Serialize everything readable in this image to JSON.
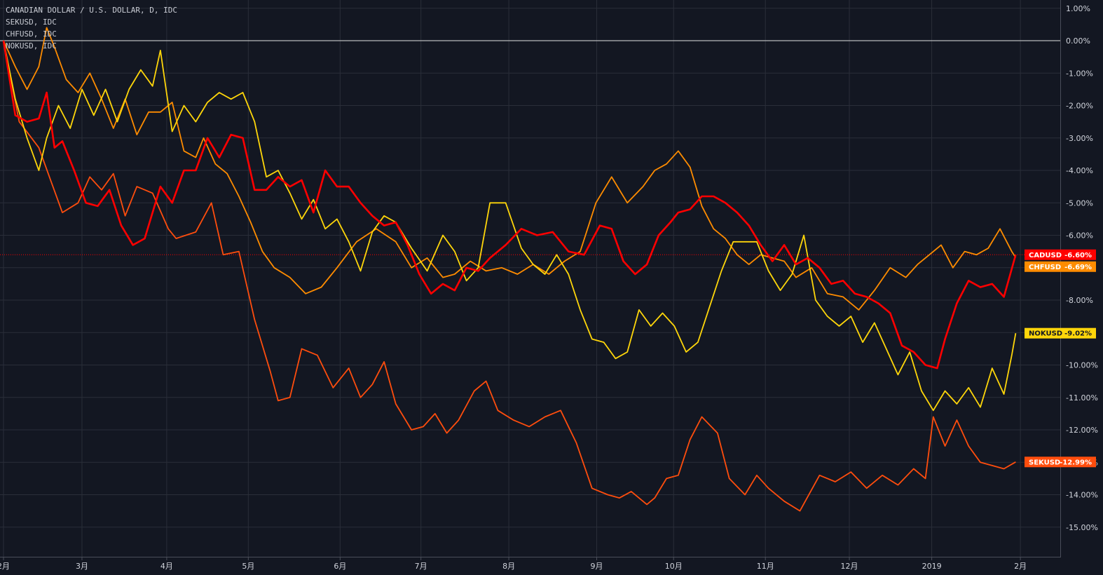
{
  "legend": {
    "line1": "CANADIAN DOLLAR / U.S. DOLLAR, D, IDC",
    "line2": "SEKUSD, IDC",
    "line3": "CHFUSD, IDC",
    "line4": "NOKUSD, IDC"
  },
  "chart_data": {
    "type": "line",
    "title": "CANADIAN DOLLAR / U.S. DOLLAR, D, IDC",
    "ylabel": "",
    "xlabel": "",
    "ylim": [
      -15.6,
      1.2
    ],
    "xlim": [
      0,
      1.295
    ],
    "y_ticks": [
      {
        "value": 1,
        "label": "1.00%"
      },
      {
        "value": 0,
        "label": "0.00%"
      },
      {
        "value": -1,
        "label": "-1.00%"
      },
      {
        "value": -2,
        "label": "-2.00%"
      },
      {
        "value": -3,
        "label": "-3.00%"
      },
      {
        "value": -4,
        "label": "-4.00%"
      },
      {
        "value": -5,
        "label": "-5.00%"
      },
      {
        "value": -6,
        "label": "-6.00%"
      },
      {
        "value": -7,
        "label": "-7.00%"
      },
      {
        "value": -8,
        "label": "-8.00%"
      },
      {
        "value": -9,
        "label": "-9.00%"
      },
      {
        "value": -10,
        "label": "-10.00%"
      },
      {
        "value": -11,
        "label": "-11.00%"
      },
      {
        "value": -12,
        "label": "-12.00%"
      },
      {
        "value": -13,
        "label": "-13.00%"
      },
      {
        "value": -14,
        "label": "-14.00%"
      },
      {
        "value": -15,
        "label": "-15.00%"
      }
    ],
    "x_ticks": [
      {
        "value": 0,
        "label": "2月"
      },
      {
        "value": 0.1,
        "label": "3月"
      },
      {
        "value": 0.208,
        "label": "4月"
      },
      {
        "value": 0.312,
        "label": "5月"
      },
      {
        "value": 0.429,
        "label": "6月"
      },
      {
        "value": 0.532,
        "label": "7月"
      },
      {
        "value": 0.644,
        "label": "8月"
      },
      {
        "value": 0.756,
        "label": "9月"
      },
      {
        "value": 0.854,
        "label": "10月"
      },
      {
        "value": 0.971,
        "label": "11月"
      },
      {
        "value": 1.078,
        "label": "12月"
      },
      {
        "value": 1.183,
        "label": "2019"
      },
      {
        "value": 1.296,
        "label": "2月"
      }
    ],
    "reference_line": {
      "value": -6.6,
      "color": "#ff0000",
      "style": "dotted"
    },
    "zero_line": {
      "value": 0,
      "color": "#ffffff"
    },
    "series": [
      {
        "name": "SEKUSD",
        "tag": "SEKUSD",
        "last_label": "-12.99%",
        "color": "#ff4d0d",
        "x": [
          0,
          0.02,
          0.045,
          0.06,
          0.075,
          0.095,
          0.11,
          0.125,
          0.14,
          0.155,
          0.17,
          0.19,
          0.21,
          0.22,
          0.245,
          0.265,
          0.28,
          0.3,
          0.32,
          0.34,
          0.35,
          0.365,
          0.38,
          0.4,
          0.42,
          0.44,
          0.455,
          0.47,
          0.485,
          0.5,
          0.52,
          0.535,
          0.55,
          0.565,
          0.58,
          0.6,
          0.615,
          0.63,
          0.65,
          0.67,
          0.69,
          0.71,
          0.73,
          0.75,
          0.77,
          0.785,
          0.8,
          0.82,
          0.83,
          0.845,
          0.86,
          0.875,
          0.89,
          0.91,
          0.925,
          0.945,
          0.96,
          0.975,
          0.995,
          1.015,
          1.04,
          1.06,
          1.08,
          1.1,
          1.12,
          1.14,
          1.16,
          1.175,
          1.185,
          1.2,
          1.215,
          1.23,
          1.245,
          1.26,
          1.275,
          1.29
        ],
        "y": [
          0,
          -2.5,
          -3.3,
          -4.3,
          -5.3,
          -5.0,
          -4.2,
          -4.6,
          -4.1,
          -5.4,
          -4.5,
          -4.7,
          -5.8,
          -6.1,
          -5.9,
          -5.0,
          -6.6,
          -6.5,
          -8.6,
          -10.2,
          -11.1,
          -11.0,
          -9.5,
          -9.7,
          -10.7,
          -10.1,
          -11.0,
          -10.6,
          -9.9,
          -11.2,
          -12.0,
          -11.9,
          -11.5,
          -12.1,
          -11.7,
          -10.8,
          -10.5,
          -11.4,
          -11.7,
          -11.9,
          -11.6,
          -11.4,
          -12.4,
          -13.8,
          -14.0,
          -14.1,
          -13.9,
          -14.3,
          -14.1,
          -13.5,
          -13.4,
          -12.3,
          -11.6,
          -12.1,
          -13.5,
          -14.0,
          -13.4,
          -13.8,
          -14.2,
          -14.5,
          -13.4,
          -13.6,
          -13.3,
          -13.8,
          -13.4,
          -13.7,
          -13.2,
          -13.5,
          -11.6,
          -12.5,
          -11.7,
          -12.5,
          -13.0,
          -13.1,
          -13.2,
          -12.99
        ]
      },
      {
        "name": "CHFUSD",
        "tag": "CHFUSD",
        "last_label": "-6.69%",
        "color": "#ff8c00",
        "x": [
          0,
          0.015,
          0.03,
          0.045,
          0.055,
          0.065,
          0.08,
          0.095,
          0.11,
          0.125,
          0.14,
          0.155,
          0.17,
          0.185,
          0.2,
          0.215,
          0.23,
          0.245,
          0.255,
          0.27,
          0.285,
          0.3,
          0.315,
          0.33,
          0.345,
          0.365,
          0.385,
          0.405,
          0.425,
          0.45,
          0.475,
          0.5,
          0.52,
          0.54,
          0.56,
          0.575,
          0.595,
          0.615,
          0.635,
          0.655,
          0.675,
          0.695,
          0.715,
          0.735,
          0.755,
          0.775,
          0.795,
          0.815,
          0.83,
          0.845,
          0.86,
          0.875,
          0.89,
          0.905,
          0.92,
          0.935,
          0.95,
          0.965,
          0.98,
          0.995,
          1.01,
          1.03,
          1.05,
          1.07,
          1.09,
          1.11,
          1.13,
          1.15,
          1.165,
          1.18,
          1.195,
          1.21,
          1.225,
          1.24,
          1.255,
          1.27,
          1.285,
          1.29
        ],
        "y": [
          0,
          -0.8,
          -1.5,
          -0.8,
          0.4,
          -0.2,
          -1.2,
          -1.6,
          -1.0,
          -1.8,
          -2.7,
          -1.8,
          -2.9,
          -2.2,
          -2.2,
          -1.9,
          -3.4,
          -3.6,
          -3.0,
          -3.8,
          -4.1,
          -4.8,
          -5.6,
          -6.5,
          -7.0,
          -7.3,
          -7.8,
          -7.6,
          -7.0,
          -6.2,
          -5.8,
          -6.2,
          -7.0,
          -6.7,
          -7.3,
          -7.2,
          -6.8,
          -7.1,
          -7.0,
          -7.2,
          -6.9,
          -7.2,
          -6.8,
          -6.5,
          -5.0,
          -4.2,
          -5.0,
          -4.5,
          -4.0,
          -3.8,
          -3.4,
          -3.9,
          -5.1,
          -5.8,
          -6.1,
          -6.6,
          -6.9,
          -6.6,
          -6.7,
          -6.8,
          -7.3,
          -7.0,
          -7.8,
          -7.9,
          -8.3,
          -7.7,
          -7.0,
          -7.3,
          -6.9,
          -6.6,
          -6.3,
          -7.0,
          -6.5,
          -6.6,
          -6.4,
          -5.8,
          -6.5,
          -6.69
        ]
      },
      {
        "name": "NOKUSD",
        "tag": "NOKUSD",
        "last_label": "-9.02%",
        "color": "#ffd60a",
        "x": [
          0,
          0.015,
          0.03,
          0.045,
          0.055,
          0.07,
          0.085,
          0.1,
          0.115,
          0.13,
          0.145,
          0.16,
          0.175,
          0.19,
          0.2,
          0.215,
          0.23,
          0.245,
          0.26,
          0.275,
          0.29,
          0.305,
          0.32,
          0.335,
          0.35,
          0.365,
          0.38,
          0.395,
          0.41,
          0.425,
          0.44,
          0.455,
          0.47,
          0.485,
          0.5,
          0.52,
          0.54,
          0.56,
          0.575,
          0.59,
          0.605,
          0.62,
          0.64,
          0.66,
          0.675,
          0.69,
          0.705,
          0.72,
          0.735,
          0.75,
          0.765,
          0.78,
          0.795,
          0.81,
          0.825,
          0.84,
          0.855,
          0.87,
          0.885,
          0.9,
          0.915,
          0.93,
          0.945,
          0.96,
          0.975,
          0.99,
          1.005,
          1.02,
          1.035,
          1.05,
          1.065,
          1.08,
          1.095,
          1.11,
          1.125,
          1.14,
          1.155,
          1.17,
          1.185,
          1.2,
          1.215,
          1.23,
          1.245,
          1.26,
          1.275,
          1.285,
          1.29
        ],
        "y": [
          0,
          -1.8,
          -3.0,
          -4.0,
          -3.0,
          -2.0,
          -2.7,
          -1.5,
          -2.3,
          -1.5,
          -2.5,
          -1.5,
          -0.9,
          -1.4,
          -0.3,
          -2.8,
          -2.0,
          -2.5,
          -1.9,
          -1.6,
          -1.8,
          -1.6,
          -2.5,
          -4.2,
          -4.0,
          -4.7,
          -5.5,
          -4.9,
          -5.8,
          -5.5,
          -6.2,
          -7.1,
          -5.9,
          -5.4,
          -5.6,
          -6.4,
          -7.1,
          -6.0,
          -6.5,
          -7.4,
          -7.0,
          -5.0,
          -5.0,
          -6.4,
          -6.9,
          -7.2,
          -6.6,
          -7.2,
          -8.3,
          -9.2,
          -9.3,
          -9.8,
          -9.6,
          -8.3,
          -8.8,
          -8.4,
          -8.8,
          -9.6,
          -9.3,
          -8.2,
          -7.1,
          -6.2,
          -6.2,
          -6.2,
          -7.1,
          -7.7,
          -7.2,
          -6.0,
          -8.0,
          -8.5,
          -8.8,
          -8.5,
          -9.3,
          -8.7,
          -9.5,
          -10.3,
          -9.6,
          -10.8,
          -11.4,
          -10.8,
          -11.2,
          -10.7,
          -11.3,
          -10.1,
          -10.9,
          -9.7,
          -9.02
        ]
      },
      {
        "name": "CADUSD",
        "tag": "CADUSD",
        "last_label": "-6.60%",
        "color": "#ff0000",
        "x": [
          0,
          0.015,
          0.03,
          0.045,
          0.055,
          0.065,
          0.075,
          0.09,
          0.105,
          0.12,
          0.135,
          0.15,
          0.165,
          0.18,
          0.2,
          0.215,
          0.23,
          0.245,
          0.26,
          0.275,
          0.29,
          0.305,
          0.32,
          0.335,
          0.35,
          0.365,
          0.38,
          0.395,
          0.41,
          0.425,
          0.44,
          0.455,
          0.47,
          0.485,
          0.5,
          0.515,
          0.53,
          0.545,
          0.56,
          0.575,
          0.59,
          0.605,
          0.62,
          0.64,
          0.66,
          0.68,
          0.7,
          0.72,
          0.74,
          0.76,
          0.775,
          0.79,
          0.805,
          0.82,
          0.835,
          0.85,
          0.86,
          0.875,
          0.89,
          0.905,
          0.92,
          0.935,
          0.95,
          0.965,
          0.98,
          0.995,
          1.01,
          1.025,
          1.04,
          1.055,
          1.07,
          1.085,
          1.1,
          1.115,
          1.13,
          1.145,
          1.16,
          1.175,
          1.19,
          1.2,
          1.215,
          1.23,
          1.245,
          1.26,
          1.275,
          1.29
        ],
        "y": [
          0,
          -2.3,
          -2.5,
          -2.4,
          -1.6,
          -3.3,
          -3.1,
          -4.0,
          -5.0,
          -5.1,
          -4.6,
          -5.7,
          -6.3,
          -6.1,
          -4.5,
          -5.0,
          -4.0,
          -4.0,
          -3.0,
          -3.6,
          -2.9,
          -3.0,
          -4.6,
          -4.6,
          -4.2,
          -4.5,
          -4.3,
          -5.3,
          -4.0,
          -4.5,
          -4.5,
          -5.0,
          -5.4,
          -5.7,
          -5.6,
          -6.3,
          -7.2,
          -7.8,
          -7.5,
          -7.7,
          -7.0,
          -7.1,
          -6.7,
          -6.3,
          -5.8,
          -6.0,
          -5.9,
          -6.5,
          -6.6,
          -5.7,
          -5.8,
          -6.8,
          -7.2,
          -6.9,
          -6.0,
          -5.6,
          -5.3,
          -5.2,
          -4.8,
          -4.8,
          -5.0,
          -5.3,
          -5.7,
          -6.3,
          -6.8,
          -6.3,
          -6.9,
          -6.7,
          -7.0,
          -7.5,
          -7.4,
          -7.8,
          -7.9,
          -8.1,
          -8.4,
          -9.4,
          -9.6,
          -10.0,
          -10.1,
          -9.2,
          -8.1,
          -7.4,
          -7.6,
          -7.5,
          -7.9,
          -6.6
        ]
      }
    ]
  }
}
